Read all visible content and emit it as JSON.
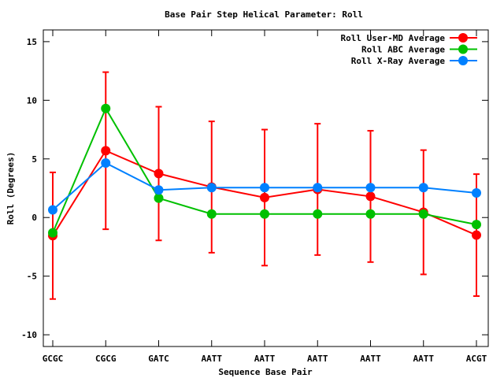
{
  "chart_data": {
    "type": "line",
    "title": "Base Pair Step Helical Parameter: Roll",
    "xlabel": "Sequence Base Pair",
    "ylabel": "Roll (Degrees)",
    "categories": [
      "GCGC",
      "CGCG",
      "GATC",
      "AATT",
      "AATT",
      "AATT",
      "AATT",
      "AATT",
      "ACGT"
    ],
    "ylim": [
      -11,
      16
    ],
    "yticks": [
      -10,
      -5,
      0,
      5,
      10,
      15
    ],
    "grid": false,
    "legend_position": "top-right",
    "series": [
      {
        "name": "Roll User-MD Average",
        "color": "#ff0000",
        "values": [
          -1.55,
          5.7,
          3.75,
          2.6,
          1.7,
          2.4,
          1.8,
          0.45,
          -1.5
        ],
        "errors": [
          5.4,
          6.7,
          5.7,
          5.6,
          5.8,
          5.6,
          5.6,
          5.3,
          5.2
        ]
      },
      {
        "name": "Roll ABC Average",
        "color": "#00c000",
        "values": [
          -1.3,
          9.3,
          1.65,
          0.3,
          0.3,
          0.3,
          0.3,
          0.3,
          -0.6
        ]
      },
      {
        "name": "Roll X-Ray Average",
        "color": "#0080ff",
        "values": [
          0.65,
          4.65,
          2.35,
          2.55,
          2.55,
          2.55,
          2.55,
          2.55,
          2.1
        ]
      }
    ]
  }
}
